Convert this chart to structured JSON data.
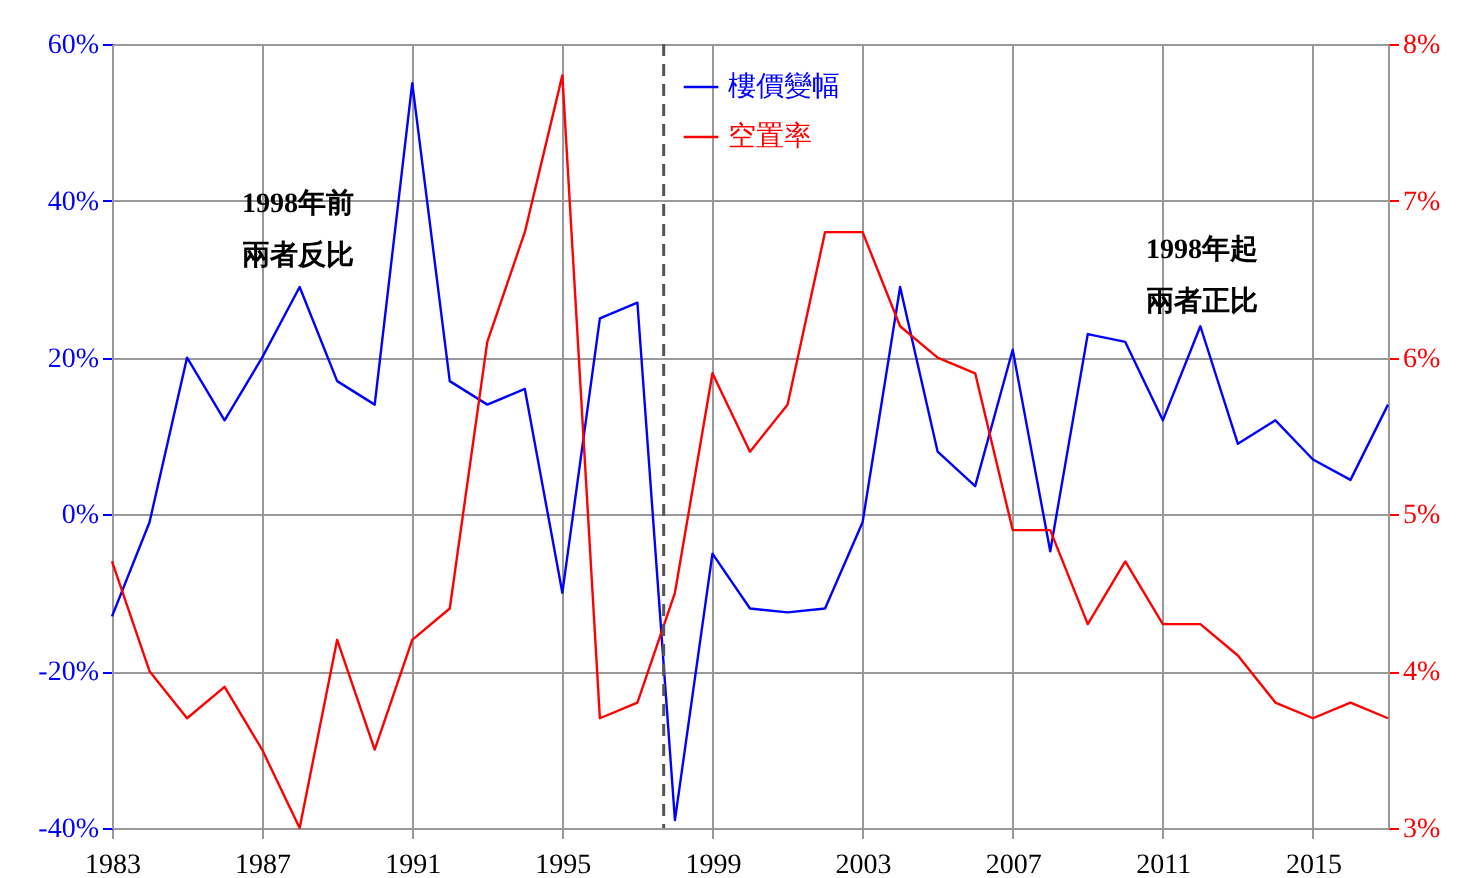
{
  "chart_data": {
    "type": "line",
    "x": [
      1983,
      1984,
      1985,
      1986,
      1987,
      1988,
      1989,
      1990,
      1991,
      1992,
      1993,
      1994,
      1995,
      1996,
      1997,
      1998,
      1999,
      2000,
      2001,
      2002,
      2003,
      2004,
      2005,
      2006,
      2007,
      2008,
      2009,
      2010,
      2011,
      2012,
      2013,
      2014,
      2015,
      2016,
      2017
    ],
    "series": [
      {
        "name": "樓價變幅",
        "color": "#0000ff",
        "values": [
          -13,
          -1,
          20,
          12,
          20,
          29,
          17,
          14,
          55,
          17,
          14,
          16,
          -10,
          25,
          27,
          -39,
          -5,
          -12,
          -12.5,
          -12,
          -1,
          29,
          8,
          3.6,
          21,
          -4.7,
          23,
          22,
          12,
          24,
          9,
          12,
          7,
          4.4,
          14
        ]
      },
      {
        "name": "空置率",
        "color": "#ff0000",
        "axis": "y2",
        "values": [
          4.7,
          4.0,
          3.7,
          3.9,
          3.5,
          3.0,
          4.2,
          3.5,
          4.2,
          4.4,
          6.1,
          6.8,
          7.8,
          3.7,
          3.8,
          4.5,
          5.9,
          5.4,
          5.7,
          6.8,
          6.8,
          6.2,
          6.0,
          5.9,
          4.9,
          4.9,
          4.3,
          4.7,
          4.3,
          4.3,
          4.1,
          3.8,
          3.7,
          3.8,
          3.7
        ]
      }
    ],
    "xlim": [
      1983,
      2017
    ],
    "xticks": [
      1983,
      1987,
      1991,
      1995,
      1999,
      2003,
      2007,
      2011,
      2015
    ],
    "ylim": [
      -40,
      60
    ],
    "yticks": [
      {
        "value": -40,
        "label": "-40%"
      },
      {
        "value": -20,
        "label": "-20%"
      },
      {
        "value": 0,
        "label": "0%"
      },
      {
        "value": 20,
        "label": "20%"
      },
      {
        "value": 40,
        "label": "40%"
      },
      {
        "value": 60,
        "label": "60%"
      }
    ],
    "y2lim": [
      3,
      8
    ],
    "y2ticks": [
      {
        "value": 3,
        "label": "3%"
      },
      {
        "value": 4,
        "label": "4%"
      },
      {
        "value": 5,
        "label": "5%"
      },
      {
        "value": 6,
        "label": "6%"
      },
      {
        "value": 7,
        "label": "7%"
      },
      {
        "value": 8,
        "label": "8%"
      }
    ],
    "ref_lines": [
      {
        "axis": "x",
        "value": 1997.7,
        "color": "#555555",
        "line_style": "dashed"
      }
    ],
    "annotations": [
      "1998年前",
      "兩者反比",
      "1998年起",
      "兩者正比"
    ],
    "grid": true,
    "legend": "top",
    "marker": "none",
    "line_style": "solid"
  }
}
